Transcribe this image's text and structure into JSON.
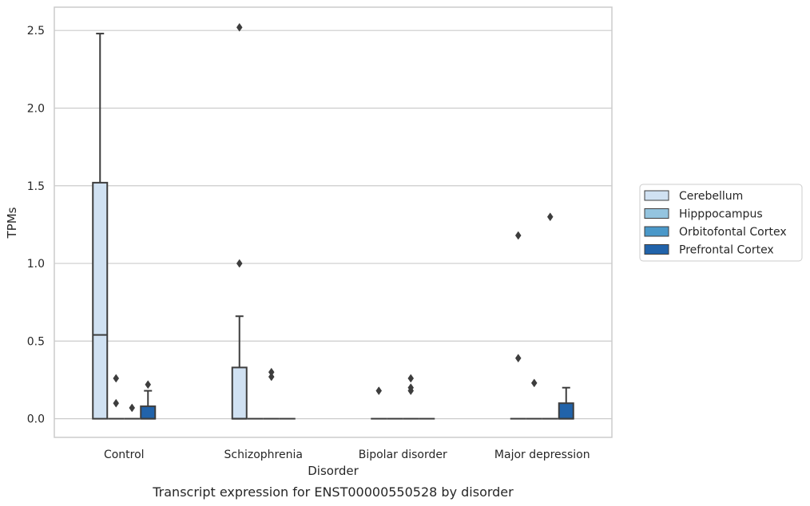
{
  "chart_data": {
    "type": "box",
    "title": "",
    "caption": "Transcript expression for ENST00000550528 by disorder",
    "xlabel": "Disorder",
    "ylabel": "TPMs",
    "ylim": [
      -0.12,
      2.65
    ],
    "yticks": [
      "0.0",
      "0.5",
      "1.0",
      "1.5",
      "2.0",
      "2.5"
    ],
    "grid": true,
    "legend_position": "center-right",
    "categories": [
      "Control",
      "Schizophrenia",
      "Bipolar disorder",
      "Major depression"
    ],
    "series": [
      {
        "name": "Cerebellum",
        "color": "#d0e1f2",
        "boxes": [
          {
            "q1": 0.0,
            "median": 0.54,
            "q3": 1.52,
            "whisker_low": 0.0,
            "whisker_high": 2.48,
            "outliers": []
          },
          {
            "q1": 0.0,
            "median": 0.0,
            "q3": 0.33,
            "whisker_low": 0.0,
            "whisker_high": 0.66,
            "outliers": [
              1.0,
              2.52
            ]
          },
          {
            "q1": 0.0,
            "median": 0.0,
            "q3": 0.0,
            "whisker_low": 0.0,
            "whisker_high": 0.0,
            "outliers": [
              0.18
            ]
          },
          {
            "q1": 0.0,
            "median": 0.0,
            "q3": 0.0,
            "whisker_low": 0.0,
            "whisker_high": 0.0,
            "outliers": [
              0.39,
              1.18
            ]
          }
        ]
      },
      {
        "name": "Hipppocampus",
        "color": "#94c4df",
        "boxes": [
          {
            "q1": 0.0,
            "median": 0.0,
            "q3": 0.0,
            "whisker_low": 0.0,
            "whisker_high": 0.0,
            "outliers": [
              0.1,
              0.26
            ]
          },
          {
            "q1": 0.0,
            "median": 0.0,
            "q3": 0.0,
            "whisker_low": 0.0,
            "whisker_high": 0.0,
            "outliers": []
          },
          {
            "q1": 0.0,
            "median": 0.0,
            "q3": 0.0,
            "whisker_low": 0.0,
            "whisker_high": 0.0,
            "outliers": []
          },
          {
            "q1": 0.0,
            "median": 0.0,
            "q3": 0.0,
            "whisker_low": 0.0,
            "whisker_high": 0.0,
            "outliers": [
              0.23
            ]
          }
        ]
      },
      {
        "name": "Orbitofontal Cortex",
        "color": "#4a98c9",
        "boxes": [
          {
            "q1": 0.0,
            "median": 0.0,
            "q3": 0.0,
            "whisker_low": 0.0,
            "whisker_high": 0.0,
            "outliers": [
              0.07
            ]
          },
          {
            "q1": 0.0,
            "median": 0.0,
            "q3": 0.0,
            "whisker_low": 0.0,
            "whisker_high": 0.0,
            "outliers": [
              0.27,
              0.3
            ]
          },
          {
            "q1": 0.0,
            "median": 0.0,
            "q3": 0.0,
            "whisker_low": 0.0,
            "whisker_high": 0.0,
            "outliers": [
              0.18,
              0.2,
              0.26
            ]
          },
          {
            "q1": 0.0,
            "median": 0.0,
            "q3": 0.0,
            "whisker_low": 0.0,
            "whisker_high": 0.0,
            "outliers": [
              1.3
            ]
          }
        ]
      },
      {
        "name": "Prefrontal Cortex",
        "color": "#2163aa",
        "boxes": [
          {
            "q1": 0.0,
            "median": 0.0,
            "q3": 0.08,
            "whisker_low": 0.0,
            "whisker_high": 0.18,
            "outliers": [
              0.22
            ]
          },
          {
            "q1": 0.0,
            "median": 0.0,
            "q3": 0.0,
            "whisker_low": 0.0,
            "whisker_high": 0.0,
            "outliers": []
          },
          {
            "q1": 0.0,
            "median": 0.0,
            "q3": 0.0,
            "whisker_low": 0.0,
            "whisker_high": 0.0,
            "outliers": []
          },
          {
            "q1": 0.0,
            "median": 0.0,
            "q3": 0.1,
            "whisker_low": 0.0,
            "whisker_high": 0.2,
            "outliers": []
          }
        ]
      }
    ]
  }
}
